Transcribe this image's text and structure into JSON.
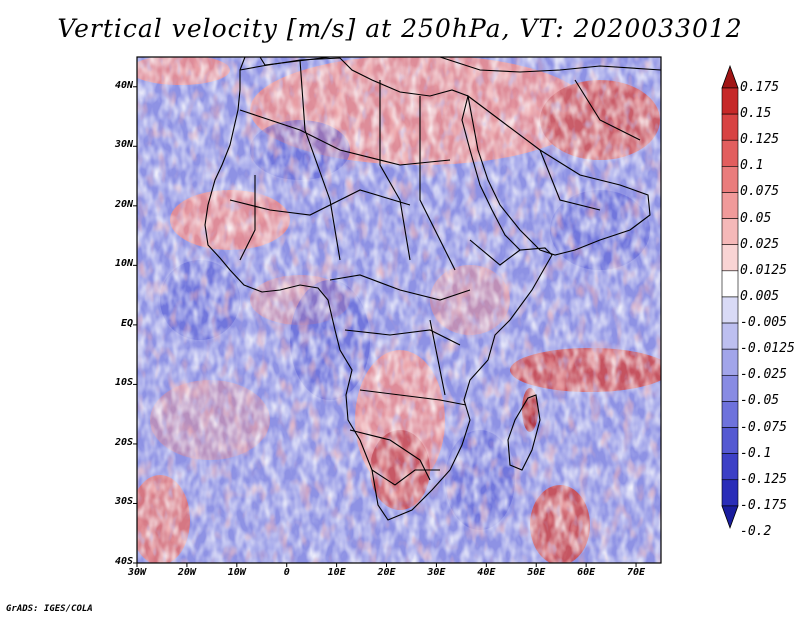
{
  "title": "Vertical velocity [m/s] at 250hPa, VT: 2020033012",
  "credit": "GrADS: IGES/COLA",
  "map": {
    "region": "Africa",
    "lat_range": [
      -40,
      45
    ],
    "lon_range": [
      -30,
      75
    ],
    "lat_ticks": [
      "40N",
      "30N",
      "20N",
      "10N",
      "EQ",
      "10S",
      "20S",
      "30S",
      "40S"
    ],
    "lat_values": [
      40,
      30,
      20,
      10,
      0,
      -10,
      -20,
      -30,
      -40
    ],
    "lon_ticks": [
      "30W",
      "20W",
      "10W",
      "0",
      "10E",
      "20E",
      "30E",
      "40E",
      "50E",
      "60E",
      "70E"
    ],
    "lon_values": [
      -30,
      -20,
      -10,
      0,
      10,
      20,
      30,
      40,
      50,
      60,
      70
    ]
  },
  "colorbar": {
    "labels": [
      "0.175",
      "0.15",
      "0.125",
      "0.1",
      "0.075",
      "0.05",
      "0.025",
      "0.0125",
      "0.005",
      "-0.005",
      "-0.0125",
      "-0.025",
      "-0.05",
      "-0.075",
      "-0.1",
      "-0.125",
      "-0.175",
      "-0.2"
    ],
    "colors": [
      "#a01515",
      "#c62828",
      "#d84343",
      "#e25e5e",
      "#ea7c7c",
      "#f09a9a",
      "#f5b8b8",
      "#f9d4d4",
      "#ffffff",
      "#d9daf6",
      "#bdbff0",
      "#a2a5ea",
      "#888be3",
      "#6e72dc",
      "#5559d2",
      "#3d40c6",
      "#2a2db8",
      "#1a1d9e"
    ]
  }
}
